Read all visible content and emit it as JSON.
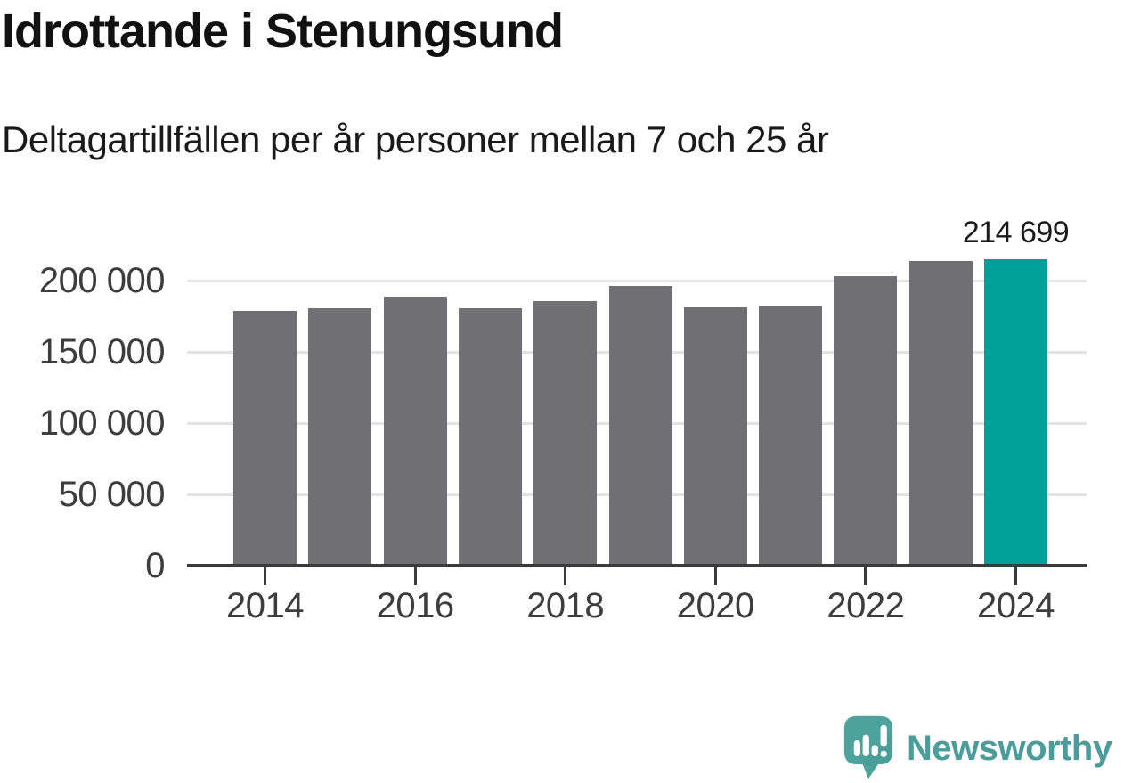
{
  "header": {
    "title": "Idrottande i Stenungsund",
    "subtitle": "Deltagartillfällen per år personer mellan 7 och 25 år"
  },
  "chart_data": {
    "type": "bar",
    "title": "Idrottande i Stenungsund",
    "subtitle": "Deltagartillfällen per år personer mellan 7 och 25 år",
    "categories": [
      "2014",
      "2015",
      "2016",
      "2017",
      "2018",
      "2019",
      "2020",
      "2021",
      "2022",
      "2023",
      "2024"
    ],
    "values": [
      179000,
      180500,
      188500,
      180500,
      185500,
      196000,
      181000,
      182000,
      203000,
      213500,
      214699
    ],
    "highlight_index": 10,
    "annotation": {
      "text": "214 699",
      "bar_index": 10
    },
    "xlabel": "",
    "ylabel": "",
    "ylim": [
      0,
      235000
    ],
    "grid": true,
    "legend": "none",
    "yticks": [
      {
        "value": 0,
        "label": "0"
      },
      {
        "value": 50000,
        "label": "50 000"
      },
      {
        "value": 100000,
        "label": "100 000"
      },
      {
        "value": 150000,
        "label": "150 000"
      },
      {
        "value": 200000,
        "label": "200 000"
      }
    ],
    "xticks": [
      {
        "index": 0,
        "label": "2014"
      },
      {
        "index": 2,
        "label": "2016"
      },
      {
        "index": 4,
        "label": "2018"
      },
      {
        "index": 6,
        "label": "2020"
      },
      {
        "index": 8,
        "label": "2022"
      },
      {
        "index": 10,
        "label": "2024"
      }
    ],
    "colors": {
      "bar": "#6f6f74",
      "highlight": "#00a099",
      "grid": "#e3e3e3",
      "axis": "#3a3a3a",
      "tick_label": "#3d3d3d",
      "annotation": "#1a1a1a",
      "title": "#111111",
      "subtitle": "#1a1a1a"
    }
  },
  "footer": {
    "brand": "Newsworthy",
    "colors": {
      "text": "#4a9d9a",
      "logo_bubble": "#4da39c",
      "logo_shade": "#3f8f89",
      "logo_glyph": "#ffffff"
    }
  }
}
